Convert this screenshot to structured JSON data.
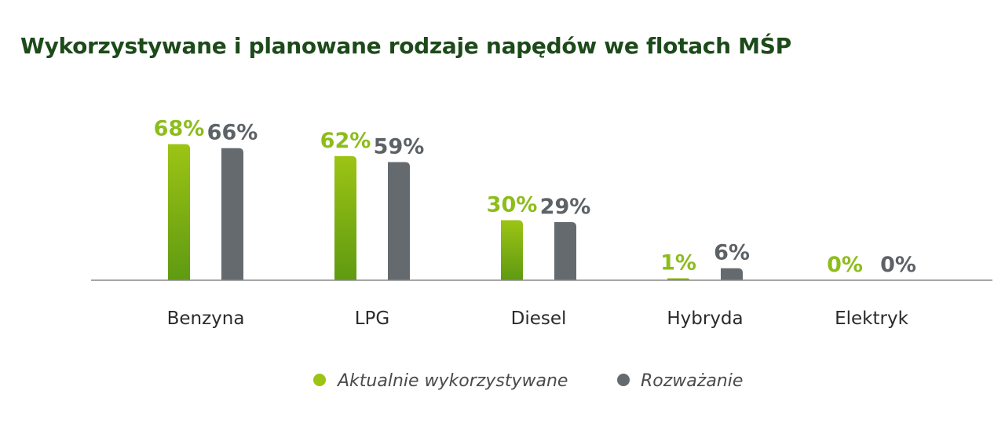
{
  "colors": {
    "title": "#1d4a1a",
    "current_top": "#9cc414",
    "current_bottom": "#5f9a12",
    "current_label": "#8cbd1a",
    "considered": "#646a6e",
    "considered_label": "#5c6266",
    "axis": "#8a8a8a",
    "category_text": "#2b2b2b",
    "legend_text": "#4a4a4a"
  },
  "chart_data": {
    "type": "bar",
    "title": "Wykorzystywane i planowane rodzaje napędów we flotach MŚP",
    "categories": [
      "Benzyna",
      "LPG",
      "Diesel",
      "Hybryda",
      "Elektryk"
    ],
    "series": [
      {
        "name": "Aktualnie wykorzystywane",
        "values": [
          68,
          62,
          30,
          1,
          0
        ],
        "labels": [
          "68%",
          "62%",
          "30%",
          "1%",
          "0%"
        ]
      },
      {
        "name": "Rozważanie",
        "values": [
          66,
          59,
          29,
          6,
          0
        ],
        "labels": [
          "66%",
          "59%",
          "29%",
          "6%",
          "0%"
        ]
      }
    ],
    "unit": "%",
    "ylim": [
      0,
      70
    ],
    "grid": false,
    "legend_position": "bottom-center"
  }
}
